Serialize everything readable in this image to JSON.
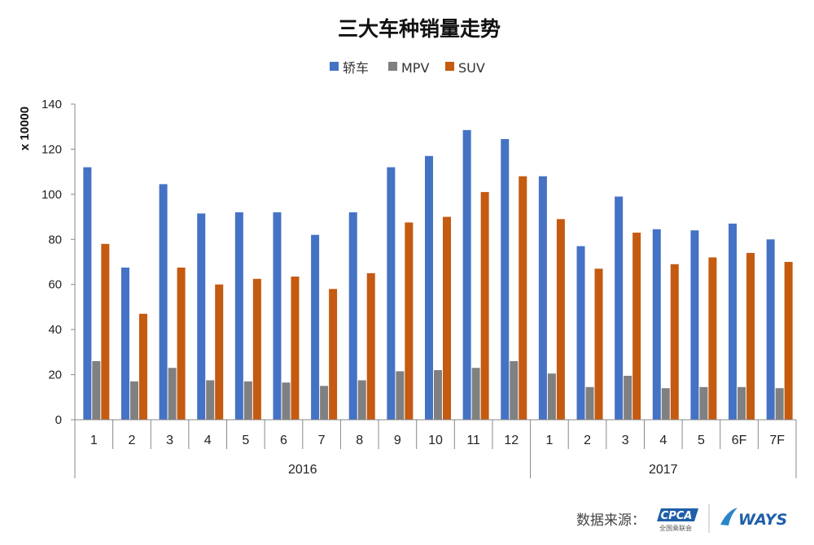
{
  "chart_data": {
    "type": "bar",
    "title": "三大车种销量走势",
    "ylabel": "x 10000",
    "ylim": [
      0,
      140
    ],
    "yticks": [
      0,
      20,
      40,
      60,
      80,
      100,
      120,
      140
    ],
    "grid": false,
    "legend_position": "top",
    "categories": [
      "1",
      "2",
      "3",
      "4",
      "5",
      "6",
      "7",
      "8",
      "9",
      "10",
      "11",
      "12",
      "1",
      "2",
      "3",
      "4",
      "5",
      "6F",
      "7F"
    ],
    "groups": [
      {
        "label": "2016",
        "count": 12
      },
      {
        "label": "2017",
        "count": 7
      }
    ],
    "series": [
      {
        "name": "轿车",
        "color": "#4472C4",
        "values": [
          112,
          67.5,
          104.5,
          91.5,
          92,
          92,
          82,
          92,
          112,
          117,
          128.5,
          124.5,
          108,
          77,
          99,
          84.5,
          84,
          87,
          80
        ]
      },
      {
        "name": "MPV",
        "color": "#808080",
        "values": [
          26,
          17,
          23,
          17.5,
          17,
          16.5,
          15,
          17.5,
          21.5,
          22,
          23,
          26,
          20.5,
          14.5,
          19.5,
          14,
          14.5,
          14.5,
          14
        ]
      },
      {
        "name": "SUV",
        "color": "#C55A11",
        "values": [
          78,
          47,
          67.5,
          60,
          62.5,
          63.5,
          58,
          65,
          87.5,
          90,
          101,
          108,
          89,
          67,
          83,
          69,
          72,
          74,
          70
        ]
      }
    ]
  },
  "footer": {
    "source_label": "数据来源：",
    "cpca_logo_text": "CPCA",
    "cpca_logo_subtext": "全国乘联会",
    "ways_logo_text": "WAYS"
  }
}
